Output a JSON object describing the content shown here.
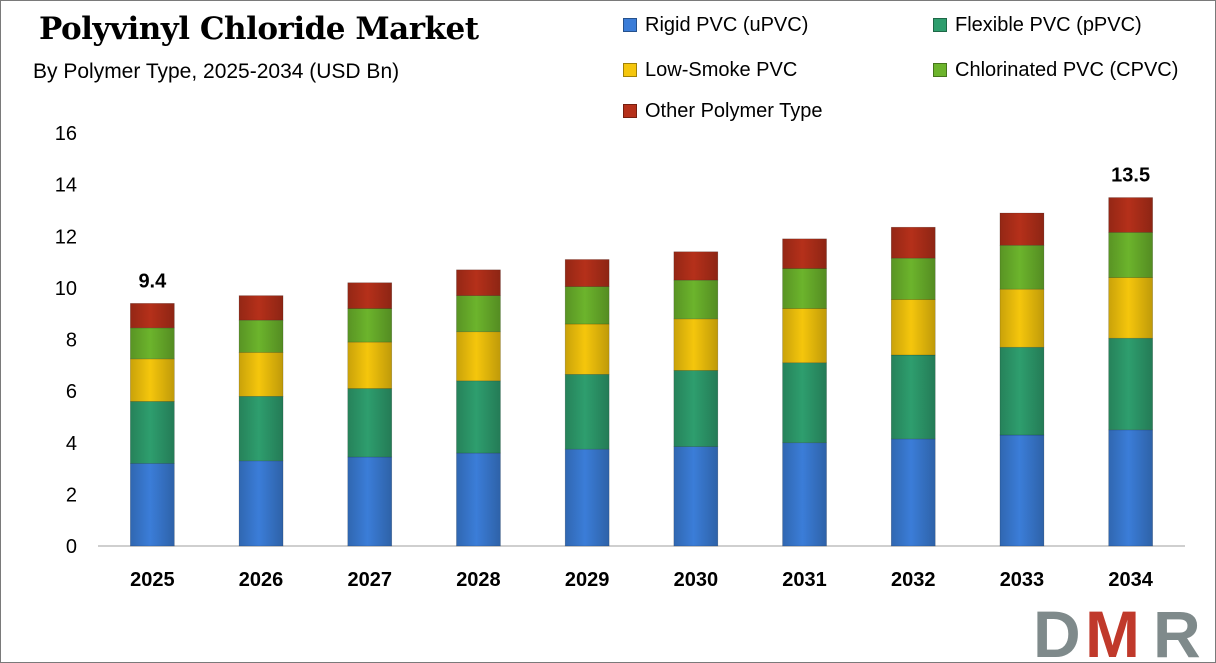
{
  "header": {
    "title": "Polyvinyl Chloride Market",
    "subtitle": "By Polymer Type, 2025-2034 (USD Bn)"
  },
  "logo": {
    "text": "DMR",
    "colors": {
      "D": "#7f8a8b",
      "M": "#c0392b",
      "R": "#7f8a8b"
    }
  },
  "chart_data": {
    "type": "bar",
    "stacked": true,
    "title": "Polyvinyl Chloride Market",
    "subtitle": "By Polymer Type, 2025-2034 (USD Bn)",
    "xlabel": "",
    "ylabel": "",
    "ylim": [
      0,
      16
    ],
    "yticks": [
      0,
      2,
      4,
      6,
      8,
      10,
      12,
      14,
      16
    ],
    "grid": false,
    "legend_position": "top-right",
    "categories": [
      "2025",
      "2026",
      "2027",
      "2028",
      "2029",
      "2030",
      "2031",
      "2032",
      "2033",
      "2034"
    ],
    "series": [
      {
        "name": "Rigid PVC (uPVC)",
        "color": "#3b7dd8",
        "values": [
          3.2,
          3.3,
          3.45,
          3.6,
          3.75,
          3.85,
          4.0,
          4.15,
          4.3,
          4.5
        ]
      },
      {
        "name": "Flexible PVC (pPVC)",
        "color": "#2e9e6e",
        "values": [
          2.4,
          2.5,
          2.65,
          2.8,
          2.9,
          2.95,
          3.1,
          3.25,
          3.4,
          3.55
        ]
      },
      {
        "name": "Low-Smoke PVC",
        "color": "#f5c60c",
        "values": [
          1.65,
          1.7,
          1.8,
          1.9,
          1.95,
          2.0,
          2.1,
          2.15,
          2.25,
          2.35
        ]
      },
      {
        "name": "Chlorinated PVC (CPVC)",
        "color": "#6cb42c",
        "values": [
          1.2,
          1.25,
          1.3,
          1.4,
          1.45,
          1.5,
          1.55,
          1.6,
          1.7,
          1.75
        ]
      },
      {
        "name": "Other Polymer Type",
        "color": "#b5301a",
        "values": [
          0.95,
          0.95,
          1.0,
          1.0,
          1.05,
          1.1,
          1.15,
          1.2,
          1.25,
          1.35
        ]
      }
    ],
    "annotations": [
      {
        "category": "2025",
        "text": "9.4"
      },
      {
        "category": "2034",
        "text": "13.5"
      }
    ]
  }
}
